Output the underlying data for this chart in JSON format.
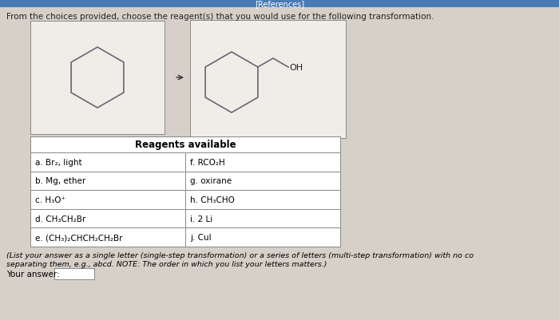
{
  "title": "[References]",
  "question_text": "From the choices provided, choose the reagent(s) that you would use for the following transformation.",
  "background_color": "#d6d0c8",
  "box_color": "#f0ede8",
  "header_color": "#4a7ab5",
  "table_header": "Reagents available",
  "reagents_left": [
    "a. Br₂, light",
    "b. Mg, ether",
    "c. H₃O⁺",
    "d. CH₃CH₂Br",
    "e. (CH₃)₂CHCH₂CH₂Br"
  ],
  "reagents_right": [
    "f. RCO₂H",
    "g. oxirane",
    "h. CH₃CHO",
    "i. 2 Li",
    "j. CuI"
  ],
  "footer_text1": "(List your answer as a single letter (single-step transformation) or a series of letters (multi-step transformation) with no co",
  "footer_text2": "separating them, e.g., abcd. NOTE: The order in which you list your letters matters.)",
  "your_answer_label": "Your answer:"
}
